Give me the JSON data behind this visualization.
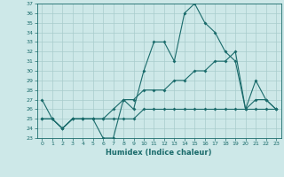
{
  "xlabel": "Humidex (Indice chaleur)",
  "ylabel": "",
  "x_values": [
    0,
    1,
    2,
    3,
    4,
    5,
    6,
    7,
    8,
    9,
    10,
    11,
    12,
    13,
    14,
    15,
    16,
    17,
    18,
    19,
    20,
    21,
    22,
    23
  ],
  "line1": [
    27,
    25,
    24,
    25,
    25,
    25,
    23,
    23,
    27,
    26,
    30,
    33,
    33,
    31,
    36,
    37,
    35,
    34,
    32,
    31,
    26,
    29,
    27,
    26
  ],
  "line2": [
    25,
    25,
    24,
    25,
    25,
    25,
    25,
    26,
    27,
    27,
    28,
    28,
    28,
    29,
    29,
    30,
    30,
    31,
    31,
    32,
    26,
    27,
    27,
    26
  ],
  "line3": [
    25,
    25,
    24,
    25,
    25,
    25,
    25,
    25,
    25,
    25,
    26,
    26,
    26,
    26,
    26,
    26,
    26,
    26,
    26,
    26,
    26,
    26,
    26,
    26
  ],
  "bg_color": "#cde8e8",
  "grid_color": "#a8cccc",
  "line_color": "#1a6b6b",
  "ylim": [
    23,
    37
  ],
  "yticks": [
    23,
    24,
    25,
    26,
    27,
    28,
    29,
    30,
    31,
    32,
    33,
    34,
    35,
    36,
    37
  ],
  "xlim": [
    -0.5,
    23.5
  ]
}
